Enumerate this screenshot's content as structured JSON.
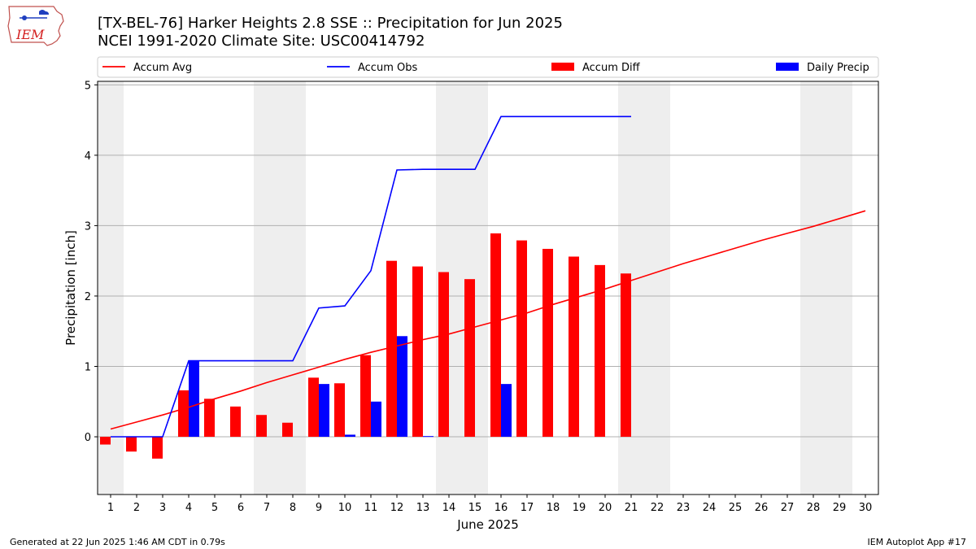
{
  "header": {
    "title": "[TX-BEL-76] Harker Heights 2.8 SSE :: Precipitation for Jun 2025",
    "subtitle": "NCEI 1991-2020 Climate Site: USC00414792"
  },
  "logo": {
    "text": "IEM"
  },
  "footer": {
    "left": "Generated at 22 Jun 2025 1:46 AM CDT in 0.79s",
    "right": "IEM Autoplot App #17"
  },
  "colors": {
    "accum_avg": "#ff0000",
    "accum_obs": "#0000ff",
    "accum_diff": "#ff0000",
    "daily_precip": "#0000ff",
    "weekend_shade": "#eeeeee",
    "grid": "#b0b0b0"
  },
  "chart_data": {
    "type": "bar",
    "xlabel": "June 2025",
    "ylabel": "Precipitation [inch]",
    "xlim": [
      0.5,
      30.5
    ],
    "ylim": [
      -0.82,
      5.05
    ],
    "yticks": [
      0,
      1,
      2,
      3,
      4,
      5
    ],
    "ytick_labels": [
      "0",
      "1",
      "2",
      "3",
      "4",
      "5"
    ],
    "days": [
      1,
      2,
      3,
      4,
      5,
      6,
      7,
      8,
      9,
      10,
      11,
      12,
      13,
      14,
      15,
      16,
      17,
      18,
      19,
      20,
      21,
      22,
      23,
      24,
      25,
      26,
      27,
      28,
      29,
      30
    ],
    "weekend_days": [
      1,
      7,
      8,
      14,
      15,
      21,
      22,
      28,
      29
    ],
    "grid": "y",
    "legend_position": "top",
    "legend": [
      {
        "label": "Accum Avg",
        "kind": "line",
        "color": "#ff0000"
      },
      {
        "label": "Accum Obs",
        "kind": "line",
        "color": "#0000ff"
      },
      {
        "label": "Accum Diff",
        "kind": "bar",
        "color": "#ff0000"
      },
      {
        "label": "Daily Precip",
        "kind": "bar",
        "color": "#0000ff"
      }
    ],
    "series": [
      {
        "name": "Accum Avg",
        "kind": "line",
        "x": [
          1,
          2,
          3,
          4,
          5,
          6,
          7,
          8,
          9,
          10,
          11,
          12,
          13,
          14,
          15,
          16,
          17,
          18,
          19,
          20,
          21,
          22,
          23,
          24,
          25,
          26,
          27,
          28,
          29,
          30
        ],
        "values": [
          0.11,
          0.21,
          0.31,
          0.42,
          0.54,
          0.65,
          0.77,
          0.88,
          0.99,
          1.1,
          1.2,
          1.29,
          1.38,
          1.46,
          1.56,
          1.66,
          1.76,
          1.88,
          1.99,
          2.1,
          2.22,
          2.34,
          2.46,
          2.57,
          2.68,
          2.79,
          2.89,
          2.99,
          3.1,
          3.21
        ]
      },
      {
        "name": "Accum Obs",
        "kind": "line",
        "x": [
          1,
          2,
          3,
          4,
          5,
          6,
          7,
          8,
          9,
          10,
          11,
          12,
          13,
          14,
          15,
          16,
          17,
          18,
          19,
          20,
          21
        ],
        "values": [
          0.0,
          0.0,
          0.0,
          1.08,
          1.08,
          1.08,
          1.08,
          1.08,
          1.83,
          1.86,
          2.36,
          3.79,
          3.8,
          3.8,
          3.8,
          4.55,
          4.55,
          4.55,
          4.55,
          4.55,
          4.55
        ]
      },
      {
        "name": "Accum Diff",
        "kind": "bar",
        "x": [
          1,
          2,
          3,
          4,
          5,
          6,
          7,
          8,
          9,
          10,
          11,
          12,
          13,
          14,
          15,
          16,
          17,
          18,
          19,
          20,
          21
        ],
        "values": [
          -0.11,
          -0.21,
          -0.31,
          0.66,
          0.54,
          0.43,
          0.31,
          0.2,
          0.84,
          0.76,
          1.16,
          2.5,
          2.42,
          2.34,
          2.24,
          2.89,
          2.79,
          2.67,
          2.56,
          2.44,
          2.32
        ]
      },
      {
        "name": "Daily Precip",
        "kind": "bar",
        "x": [
          1,
          2,
          3,
          4,
          5,
          6,
          7,
          8,
          9,
          10,
          11,
          12,
          13,
          14,
          15,
          16,
          17,
          18,
          19,
          20,
          21
        ],
        "values": [
          0.0,
          0.0,
          0.0,
          1.08,
          0.0,
          0.0,
          0.0,
          0.0,
          0.75,
          0.03,
          0.5,
          1.43,
          0.01,
          0.0,
          0.0,
          0.75,
          0.0,
          0.0,
          0.0,
          0.0,
          0.0
        ]
      }
    ]
  }
}
